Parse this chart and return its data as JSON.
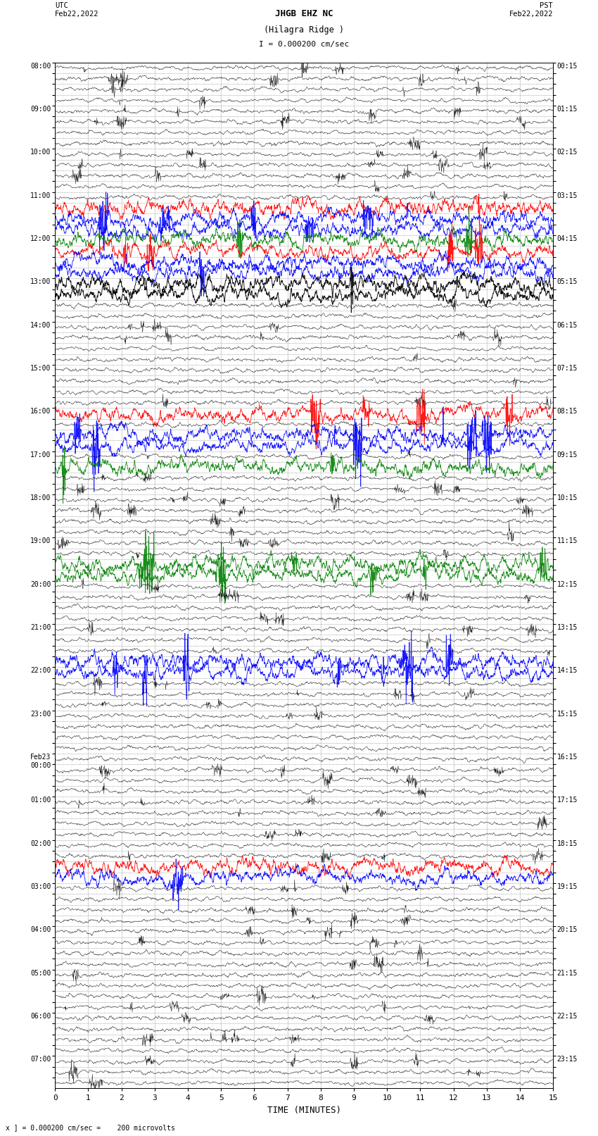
{
  "title_line1": "JHGB EHZ NC",
  "title_line2": "(Hilagra Ridge )",
  "scale_label": "I = 0.000200 cm/sec",
  "footer_label": "x ] = 0.000200 cm/sec =    200 microvolts",
  "utc_label": "UTC\nFeb22,2022",
  "pst_label": "PST\nFeb22,2022",
  "xlabel": "TIME (MINUTES)",
  "left_times": [
    "08:00",
    "",
    "",
    "",
    "09:00",
    "",
    "",
    "",
    "10:00",
    "",
    "",
    "",
    "11:00",
    "",
    "",
    "",
    "12:00",
    "",
    "",
    "",
    "13:00",
    "",
    "",
    "",
    "14:00",
    "",
    "",
    "",
    "15:00",
    "",
    "",
    "",
    "16:00",
    "",
    "",
    "",
    "17:00",
    "",
    "",
    "",
    "18:00",
    "",
    "",
    "",
    "19:00",
    "",
    "",
    "",
    "20:00",
    "",
    "",
    "",
    "21:00",
    "",
    "",
    "",
    "22:00",
    "",
    "",
    "",
    "23:00",
    "",
    "",
    "",
    "Feb23\n00:00",
    "",
    "",
    "",
    "01:00",
    "",
    "",
    "",
    "02:00",
    "",
    "",
    "",
    "03:00",
    "",
    "",
    "",
    "04:00",
    "",
    "",
    "",
    "05:00",
    "",
    "",
    "",
    "06:00",
    "",
    "",
    "",
    "07:00",
    "",
    ""
  ],
  "right_times": [
    "00:15",
    "",
    "",
    "",
    "01:15",
    "",
    "",
    "",
    "02:15",
    "",
    "",
    "",
    "03:15",
    "",
    "",
    "",
    "04:15",
    "",
    "",
    "",
    "05:15",
    "",
    "",
    "",
    "06:15",
    "",
    "",
    "",
    "07:15",
    "",
    "",
    "",
    "08:15",
    "",
    "",
    "",
    "09:15",
    "",
    "",
    "",
    "10:15",
    "",
    "",
    "",
    "11:15",
    "",
    "",
    "",
    "12:15",
    "",
    "",
    "",
    "13:15",
    "",
    "",
    "",
    "14:15",
    "",
    "",
    "",
    "15:15",
    "",
    "",
    "",
    "16:15",
    "",
    "",
    "",
    "17:15",
    "",
    "",
    "",
    "18:15",
    "",
    "",
    "",
    "19:15",
    "",
    "",
    "",
    "20:15",
    "",
    "",
    "",
    "21:15",
    "",
    "",
    "",
    "22:15",
    "",
    "",
    "",
    "23:15",
    "",
    ""
  ],
  "n_rows": 95,
  "x_ticks": [
    0,
    1,
    2,
    3,
    4,
    5,
    6,
    7,
    8,
    9,
    10,
    11,
    12,
    13,
    14,
    15
  ],
  "background_color": "#ffffff",
  "grid_color": "#bbbbbb",
  "seed": 42,
  "colored_rows": {
    "11_blue_flat": 14,
    "11_blue_flat2": 15,
    "12_green_flat": 16,
    "13_red": 17,
    "14_blue": 18,
    "15_blue2": 19,
    "16_black_big": 20,
    "28_red": 32,
    "29_blue": 34,
    "30_blue2": 35,
    "31_green": 37,
    "38_green2": 46,
    "39_green3": 47,
    "42_blue": 55,
    "43_blue2": 56,
    "62_red": 74,
    "63_blue": 75
  },
  "special_colored": {
    "blue": [
      14,
      15,
      18,
      19,
      34,
      35,
      55,
      56,
      75
    ],
    "green": [
      16,
      37,
      46,
      47
    ],
    "red": [
      13,
      17,
      32,
      74
    ],
    "black_event": [
      20,
      21
    ]
  }
}
